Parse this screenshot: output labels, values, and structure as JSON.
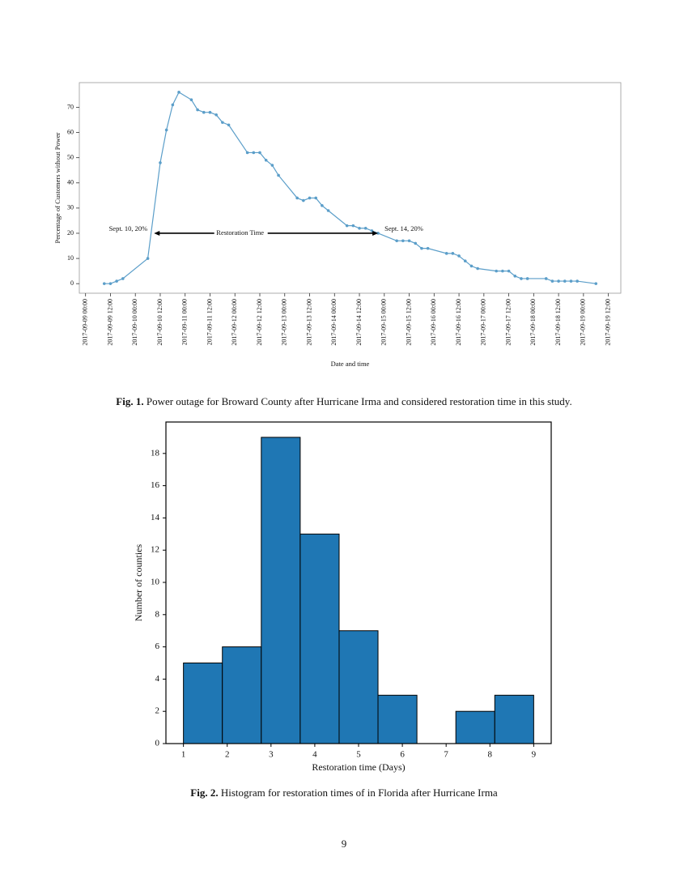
{
  "chart_data": [
    {
      "type": "line",
      "x_label": "Date and time",
      "y_label": "Percentage of Customers without Power",
      "color": "#5b9ec9",
      "x": [
        "2017-09-09 09:00",
        "2017-09-09 12:00",
        "2017-09-09 15:00",
        "2017-09-09 18:00",
        "2017-09-10 06:00",
        "2017-09-10 12:00",
        "2017-09-10 15:00",
        "2017-09-10 18:00",
        "2017-09-10 21:00",
        "2017-09-11 03:00",
        "2017-09-11 06:00",
        "2017-09-11 09:00",
        "2017-09-11 12:00",
        "2017-09-11 15:00",
        "2017-09-11 18:00",
        "2017-09-11 21:00",
        "2017-09-12 06:00",
        "2017-09-12 09:00",
        "2017-09-12 12:00",
        "2017-09-12 15:00",
        "2017-09-12 18:00",
        "2017-09-12 21:00",
        "2017-09-13 06:00",
        "2017-09-13 09:00",
        "2017-09-13 12:00",
        "2017-09-13 15:00",
        "2017-09-13 18:00",
        "2017-09-13 21:00",
        "2017-09-14 06:00",
        "2017-09-14 09:00",
        "2017-09-14 12:00",
        "2017-09-14 15:00",
        "2017-09-14 18:00",
        "2017-09-14 21:00",
        "2017-09-15 06:00",
        "2017-09-15 09:00",
        "2017-09-15 12:00",
        "2017-09-15 15:00",
        "2017-09-15 18:00",
        "2017-09-15 21:00",
        "2017-09-16 06:00",
        "2017-09-16 09:00",
        "2017-09-16 12:00",
        "2017-09-16 15:00",
        "2017-09-16 18:00",
        "2017-09-16 21:00",
        "2017-09-17 06:00",
        "2017-09-17 09:00",
        "2017-09-17 12:00",
        "2017-09-17 15:00",
        "2017-09-17 18:00",
        "2017-09-17 21:00",
        "2017-09-18 06:00",
        "2017-09-18 09:00",
        "2017-09-18 12:00",
        "2017-09-18 15:00",
        "2017-09-18 18:00",
        "2017-09-18 21:00",
        "2017-09-19 06:00"
      ],
      "values": [
        0,
        0,
        1,
        2,
        10,
        48,
        61,
        71,
        76,
        73,
        69,
        68,
        68,
        67,
        64,
        63,
        52,
        52,
        52,
        49,
        47,
        43,
        34,
        33,
        34,
        34,
        31,
        29,
        23,
        23,
        22,
        22,
        21,
        20,
        17,
        17,
        17,
        16,
        14,
        14,
        12,
        12,
        11,
        9,
        7,
        6,
        5,
        5,
        5,
        3,
        2,
        2,
        2,
        1,
        1,
        1,
        1,
        1,
        0
      ],
      "xlim": [
        "2017-09-08 21:00",
        "2017-09-19 18:00"
      ],
      "xticks": [
        "2017-09-09 00:00",
        "2017-09-09 12:00",
        "2017-09-10 00:00",
        "2017-09-10 12:00",
        "2017-09-11 00:00",
        "2017-09-11 12:00",
        "2017-09-12 00:00",
        "2017-09-12 12:00",
        "2017-09-13 00:00",
        "2017-09-13 12:00",
        "2017-09-14 00:00",
        "2017-09-14 12:00",
        "2017-09-15 00:00",
        "2017-09-15 12:00",
        "2017-09-16 00:00",
        "2017-09-16 12:00",
        "2017-09-17 00:00",
        "2017-09-17 12:00",
        "2017-09-18 00:00",
        "2017-09-18 12:00",
        "2017-09-19 00:00",
        "2017-09-19 12:00"
      ],
      "ylim": [
        -3.8,
        79.8
      ],
      "yticks": [
        0,
        10,
        20,
        30,
        40,
        50,
        60,
        70
      ],
      "annotations": {
        "start_label": "Sept. 10, 20%",
        "end_label": "Sept. 14, 20%",
        "arrow_label": "Restoration Time",
        "arrow": {
          "x": [
            "2017-09-10 09:00",
            "2017-09-14 21:00"
          ],
          "y": 20
        }
      }
    },
    {
      "type": "histogram",
      "x_label": "Restoration time (Days)",
      "y_label": "Number of counties",
      "color": "#1f77b4",
      "edgecolor": "#000000",
      "bins": [
        1,
        1.889,
        2.778,
        3.667,
        4.556,
        5.444,
        6.333,
        7.222,
        8.111,
        9
      ],
      "values": [
        5,
        6,
        19,
        13,
        7,
        3,
        0,
        2,
        3
      ],
      "xlim": [
        0.6,
        9.4
      ],
      "xticks": [
        1,
        2,
        3,
        4,
        5,
        6,
        7,
        8,
        9
      ],
      "ylim": [
        0,
        19.95
      ],
      "yticks": [
        0,
        2,
        4,
        6,
        8,
        10,
        12,
        14,
        16,
        18
      ]
    }
  ],
  "captions": [
    {
      "label": "Fig. 1.",
      "text": " Power outage for Broward County after Hurricane Irma and considered restoration time in this study."
    },
    {
      "label": "Fig. 2.",
      "text": " Histogram for restoration times of in Florida after Hurricane Irma"
    }
  ],
  "page_number": "9"
}
